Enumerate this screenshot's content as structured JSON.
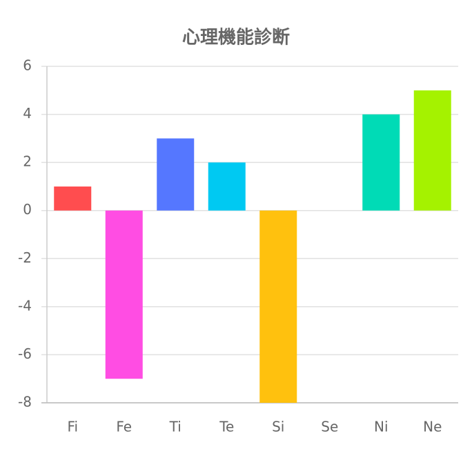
{
  "chart_data": {
    "type": "bar",
    "title": "心理機能診断",
    "categories": [
      "Fi",
      "Fe",
      "Ti",
      "Te",
      "Si",
      "Se",
      "Ni",
      "Ne"
    ],
    "values": [
      1,
      -7,
      3,
      2,
      -8,
      0,
      4,
      5
    ],
    "colors": [
      "#ff4d4f",
      "#ff4de3",
      "#5577ff",
      "#00c9f2",
      "#ffc10e",
      "#ff9f40",
      "#00dbb6",
      "#a5f200"
    ],
    "ylim": [
      -8,
      6
    ],
    "yticks": [
      -8,
      -6,
      -4,
      -2,
      0,
      2,
      4,
      6
    ],
    "grid": true
  }
}
